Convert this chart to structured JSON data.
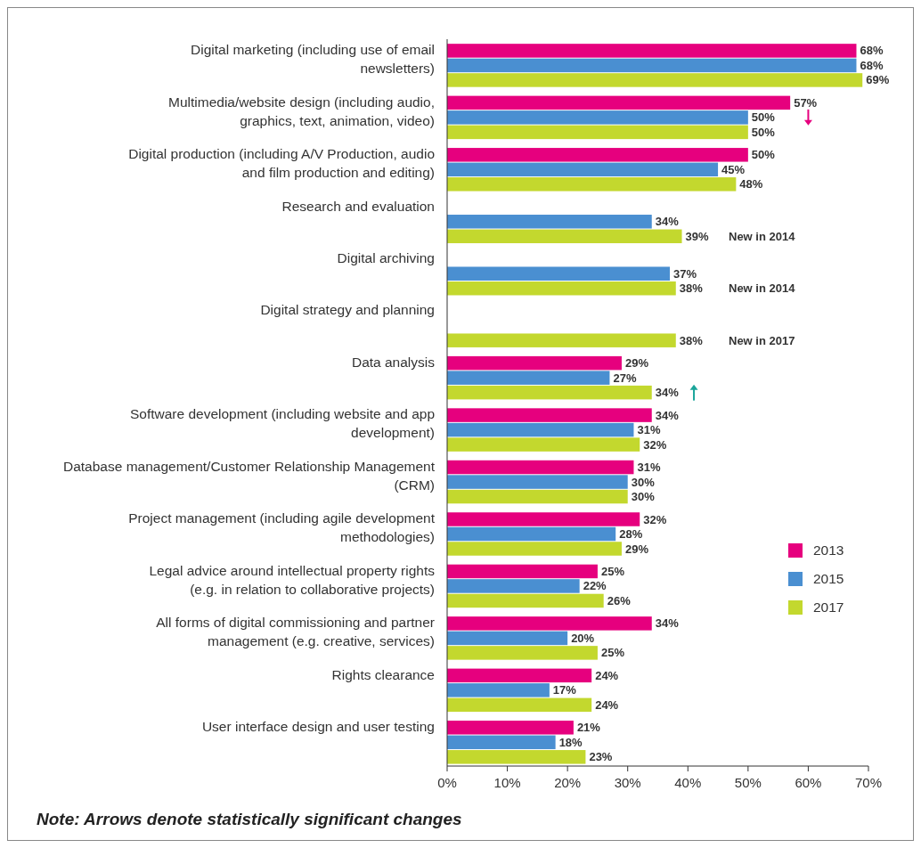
{
  "chart_data": {
    "type": "bar",
    "orientation": "horizontal",
    "categories": [
      "Digital marketing (including use of email newsletters)",
      "Multimedia/website design (including audio, graphics, text, animation, video)",
      "Digital production (including A/V Production, audio and film production and editing)",
      "Research and evaluation",
      "Digital archiving",
      "Digital strategy and planning",
      "Data analysis",
      "Software development (including website and app development)",
      "Database management/Customer Relationship Management (CRM)",
      "Project management (including agile development methodologies)",
      "Legal advice around intellectual property rights (e.g. in relation to collaborative projects)",
      "All forms of digital commissioning and partner management (e.g. creative, services)",
      "Rights clearance",
      "User interface design and user testing"
    ],
    "series": [
      {
        "name": "2013",
        "color": "#e6007e",
        "values": [
          68,
          57,
          50,
          null,
          null,
          null,
          29,
          34,
          31,
          32,
          25,
          34,
          24,
          21
        ],
        "value_labels": [
          "68%",
          "57%",
          "50%",
          null,
          null,
          null,
          "29%",
          "34%",
          "31%",
          "32%",
          "25%",
          "34%",
          "24%",
          "21%"
        ]
      },
      {
        "name": "2015",
        "color": "#4a8fd1",
        "values": [
          68,
          50,
          45,
          34,
          37,
          null,
          27,
          31,
          30,
          28,
          22,
          20,
          17,
          18
        ],
        "value_labels": [
          "68%",
          "50%",
          "45%",
          "34%",
          "37%",
          null,
          "27%",
          "31%",
          "30%",
          "28%",
          "22%",
          "20%",
          "17%",
          "18%"
        ]
      },
      {
        "name": "2017",
        "color": "#c3d82e",
        "values": [
          69,
          50,
          48,
          39,
          38,
          38,
          34,
          32,
          30,
          29,
          26,
          25,
          24,
          23
        ],
        "value_labels": [
          "69%",
          "50%",
          "48%",
          "39%",
          "38%",
          "38%",
          "34%",
          "32%",
          "30%",
          "29%",
          "26%",
          "25%",
          "24%",
          "23%"
        ]
      }
    ],
    "xlim": [
      0,
      70
    ],
    "xticks": [
      {
        "value": 0,
        "label": "0%"
      },
      {
        "value": 10,
        "label": "10%"
      },
      {
        "value": 20,
        "label": "20%"
      },
      {
        "value": 30,
        "label": "30%"
      },
      {
        "value": 40,
        "label": "40%"
      },
      {
        "value": 50,
        "label": "50%"
      },
      {
        "value": 60,
        "label": "60%"
      },
      {
        "value": 70,
        "label": "70%"
      }
    ],
    "legend": "bottom right",
    "grid": false,
    "annotations": [
      "New in 2014",
      "New in 2014",
      "New in 2017",
      "Note: Arrows denote statistically significant changes"
    ]
  }
}
